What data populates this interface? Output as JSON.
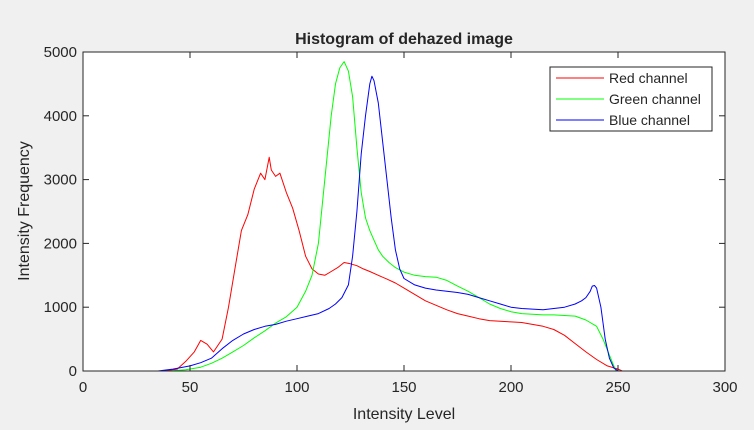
{
  "chart_data": {
    "type": "line",
    "title": "Histogram of dehazed image",
    "xlabel": "Intensity Level",
    "ylabel": "Intensity Frequency",
    "xlim": [
      0,
      300
    ],
    "ylim": [
      0,
      5000
    ],
    "xticks": [
      0,
      50,
      100,
      150,
      200,
      250,
      300
    ],
    "yticks": [
      0,
      1000,
      2000,
      3000,
      4000,
      5000
    ],
    "grid": false,
    "legend_position": "top-right",
    "series": [
      {
        "name": "Red channel",
        "color": "#ff0000",
        "x": [
          0,
          38,
          44,
          48,
          52,
          55,
          58,
          61,
          65,
          68,
          71,
          74,
          77,
          80,
          83,
          85,
          87,
          88,
          90,
          92,
          95,
          98,
          101,
          104,
          107,
          110,
          113,
          116,
          119,
          122,
          125,
          128,
          131,
          134,
          138,
          142,
          146,
          150,
          155,
          160,
          165,
          170,
          175,
          180,
          185,
          190,
          195,
          200,
          205,
          210,
          215,
          220,
          225,
          230,
          235,
          240,
          245,
          250,
          252
        ],
        "values": [
          0,
          0,
          30,
          150,
          300,
          480,
          420,
          300,
          500,
          1000,
          1600,
          2200,
          2450,
          2850,
          3100,
          3000,
          3350,
          3150,
          3050,
          3100,
          2800,
          2550,
          2200,
          1800,
          1600,
          1520,
          1500,
          1560,
          1620,
          1700,
          1680,
          1650,
          1600,
          1560,
          1500,
          1440,
          1380,
          1300,
          1200,
          1100,
          1030,
          960,
          900,
          860,
          820,
          790,
          780,
          770,
          760,
          730,
          700,
          650,
          560,
          430,
          300,
          180,
          80,
          30,
          0
        ]
      },
      {
        "name": "Green channel",
        "color": "#00ff00",
        "x": [
          0,
          40,
          48,
          55,
          60,
          65,
          70,
          75,
          80,
          85,
          90,
          95,
          100,
          104,
          107,
          110,
          113,
          116,
          118,
          120,
          122,
          124,
          126,
          128,
          130,
          132,
          134,
          136,
          138,
          140,
          143,
          146,
          150,
          155,
          160,
          165,
          170,
          175,
          180,
          185,
          190,
          195,
          200,
          205,
          210,
          215,
          220,
          225,
          230,
          235,
          240,
          243,
          246,
          249
        ],
        "values": [
          0,
          0,
          20,
          60,
          120,
          200,
          300,
          400,
          520,
          630,
          750,
          850,
          1000,
          1250,
          1500,
          2000,
          3000,
          4000,
          4500,
          4750,
          4850,
          4700,
          4300,
          3500,
          2800,
          2400,
          2200,
          2050,
          1900,
          1800,
          1700,
          1620,
          1550,
          1500,
          1480,
          1470,
          1420,
          1330,
          1250,
          1150,
          1050,
          980,
          930,
          900,
          890,
          880,
          880,
          870,
          860,
          800,
          700,
          500,
          250,
          0
        ]
      },
      {
        "name": "Blue channel",
        "color": "#0000ff",
        "x": [
          0,
          35,
          42,
          50,
          55,
          60,
          65,
          70,
          75,
          80,
          85,
          90,
          95,
          100,
          105,
          110,
          115,
          118,
          121,
          124,
          126,
          128,
          130,
          132,
          134,
          135,
          136,
          138,
          140,
          142,
          144,
          146,
          148,
          150,
          155,
          160,
          165,
          170,
          175,
          180,
          185,
          190,
          195,
          200,
          205,
          210,
          215,
          220,
          225,
          230,
          233,
          235,
          237,
          238,
          239,
          240,
          242,
          244,
          246,
          248,
          250
        ],
        "values": [
          0,
          0,
          30,
          80,
          130,
          200,
          350,
          480,
          580,
          650,
          700,
          730,
          780,
          820,
          860,
          900,
          980,
          1050,
          1150,
          1350,
          1800,
          2500,
          3400,
          4000,
          4500,
          4620,
          4550,
          4200,
          3600,
          3000,
          2400,
          1900,
          1600,
          1450,
          1350,
          1300,
          1270,
          1250,
          1230,
          1200,
          1150,
          1100,
          1050,
          1000,
          980,
          970,
          960,
          980,
          1000,
          1050,
          1100,
          1150,
          1250,
          1330,
          1340,
          1300,
          1000,
          500,
          200,
          50,
          0
        ]
      }
    ]
  }
}
